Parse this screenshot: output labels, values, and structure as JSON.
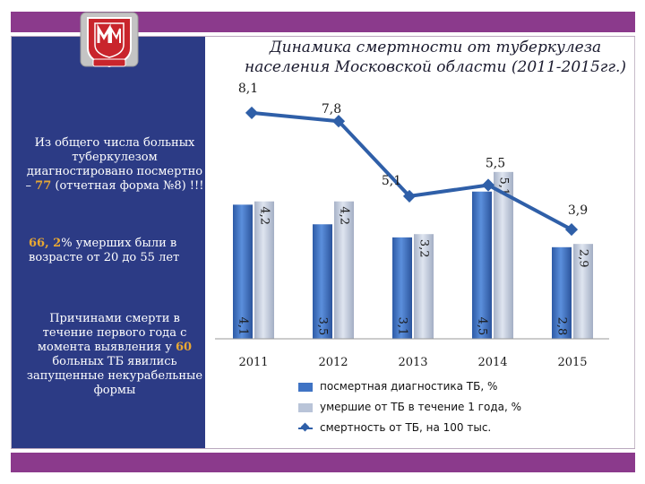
{
  "sidebar": {
    "logo_alt": "university-seal",
    "note_total_part1": "Из общего числа больных туберкулезом диагностировано посмертно – ",
    "note_total_value": "77",
    "note_total_part2": " (отчетная форма №8) !!!",
    "note_age_value": "66, 2",
    "note_age_text": "% умерших были в возрасте от 20 до 55 лет",
    "note_cause_part1": "Причинами смерти в течение первого года с момента выявления у ",
    "note_cause_value": "60",
    "note_cause_part2": " больных ТБ явились запущенные некурабельные формы"
  },
  "colors": {
    "frame": "#8b3a8c",
    "sidebar": "#2c3b85",
    "highlight": "#e8a833",
    "bar_blue": "#3f73c4",
    "bar_grey": "#b9c4d8",
    "line": "#2f5fa8"
  },
  "chart_data": {
    "type": "bar+line",
    "title": "Динамика смертности от туберкулеза населения Московской области (2011-2015гг.)",
    "categories": [
      "2011",
      "2012",
      "2013",
      "2014",
      "2015"
    ],
    "series": [
      {
        "name": "посмертная диагностика ТБ, %",
        "type": "bar",
        "values": [
          4.1,
          3.5,
          3.1,
          4.5,
          2.8
        ],
        "labels": [
          "4,1",
          "3,5",
          "3,1",
          "4,5",
          "2,8"
        ]
      },
      {
        "name": "умершие от ТБ в течение 1 года, %",
        "type": "bar",
        "values": [
          4.2,
          4.2,
          3.2,
          5.1,
          2.9
        ],
        "labels": [
          "4,2",
          "4,2",
          "3,2",
          "5,1",
          "2,9"
        ]
      },
      {
        "name": "смертность от ТБ, на 100 тыс.",
        "type": "line",
        "values": [
          8.1,
          7.8,
          5.1,
          5.5,
          3.9
        ],
        "labels": [
          "8,1",
          "7,8",
          "5,1",
          "5,5",
          "3,9"
        ]
      }
    ],
    "legend": "bottom"
  }
}
